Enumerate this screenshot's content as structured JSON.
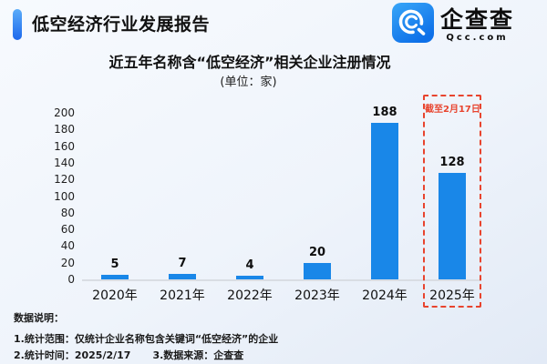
{
  "header": {
    "title": "低空经济行业发展报告",
    "logo_name": "企查查",
    "logo_domain": "Qcc.com"
  },
  "chart_data": {
    "type": "bar",
    "title": "近五年名称含“低空经济”相关企业注册情况",
    "unit_label": "(单位：家)",
    "categories": [
      "2020年",
      "2021年",
      "2022年",
      "2023年",
      "2024年",
      "2025年"
    ],
    "values": [
      5,
      7,
      4,
      20,
      188,
      128
    ],
    "ylim": [
      0,
      200
    ],
    "ytick_step": 20,
    "grid": false,
    "legend": "none",
    "annotation": {
      "text": "截至2月17日",
      "target_category": "2025年"
    }
  },
  "footer": {
    "heading": "数据说明：",
    "note1": "1.统计范围：仅统计企业名称包含关键词“低空经济”的企业",
    "note2": "2.统计时间：2025/2/17",
    "note3": "3.数据来源：企查查"
  },
  "colors": {
    "bar": "#1987E8",
    "accent_top": "#5AACF9",
    "accent_bottom": "#1D68EC",
    "annotation": "#E8442E",
    "title_text": "#111111",
    "axis_line": "#D9DDE3",
    "bg_start": "#F7FAFE",
    "bg_end": "#E2EAF6"
  }
}
